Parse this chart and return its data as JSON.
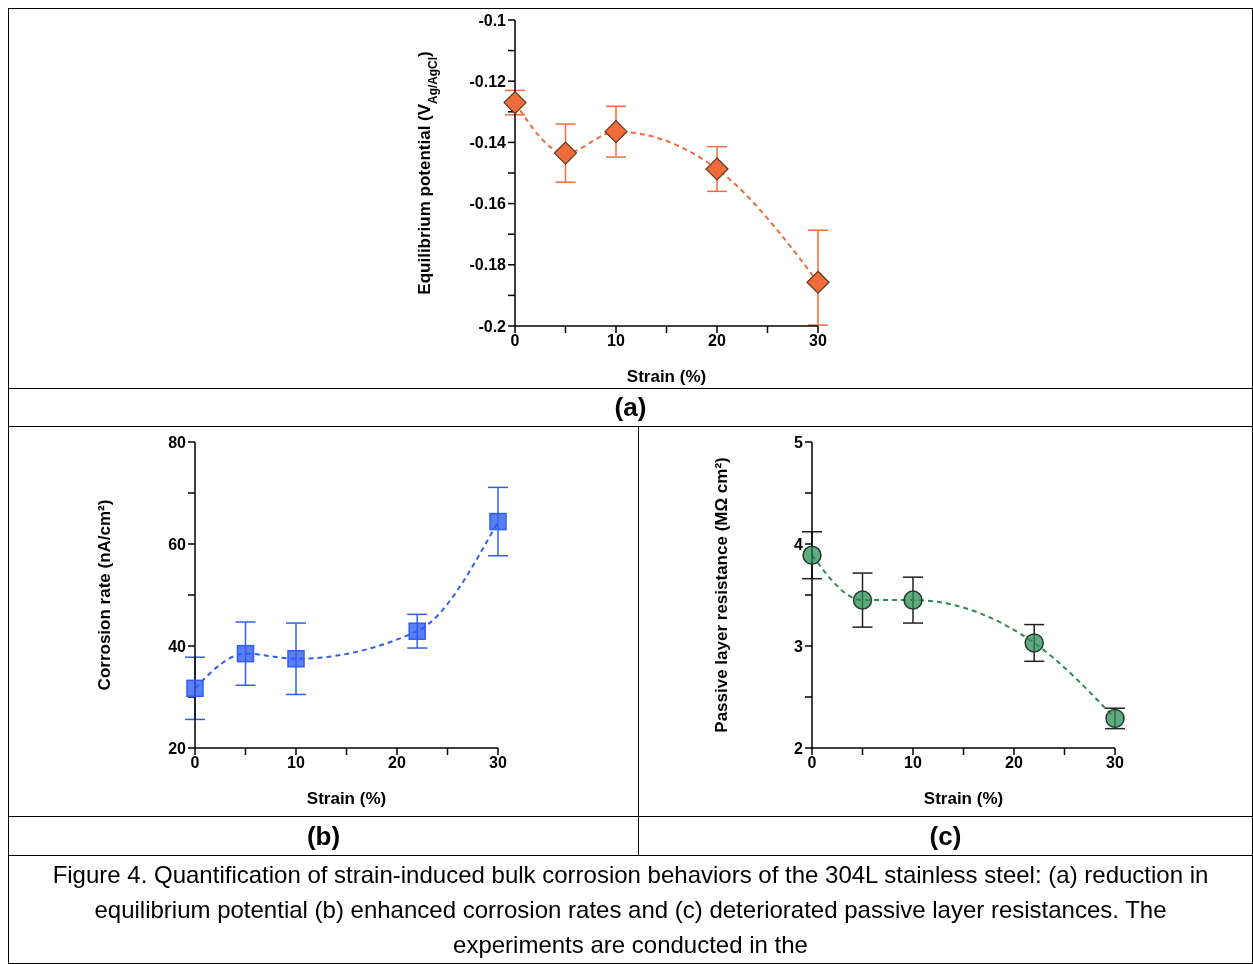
{
  "chart_data": [
    {
      "type": "line",
      "xlabel": "Strain (%)",
      "ylabel": "Equilibrium potential (V$_{Ag/AgCl}$)",
      "xlim": [
        0,
        30
      ],
      "ylim": [
        -0.2,
        -0.1
      ],
      "xticks": [
        0,
        {
          "value": 5,
          "label": null
        },
        10,
        {
          "value": 15,
          "label": null
        },
        20,
        {
          "value": 25,
          "label": null
        },
        30
      ],
      "yticks": [
        -0.2,
        {
          "value": -0.19,
          "label": null
        },
        -0.18,
        {
          "value": -0.17,
          "label": null
        },
        -0.16,
        {
          "value": -0.15,
          "label": null
        },
        -0.14,
        {
          "value": -0.13,
          "label": null
        },
        -0.12,
        {
          "value": -0.11,
          "label": null
        },
        -0.1
      ],
      "grid": false,
      "legend": false,
      "marker": "diamond",
      "line_style": "dashed",
      "series": [
        {
          "color": "#f26b3a",
          "x": [
            0,
            5,
            10,
            20,
            30
          ],
          "values": [
            -0.127,
            -0.1435,
            -0.1365,
            -0.1487,
            -0.1857
          ],
          "errors": [
            0.004,
            0.0095,
            0.0083,
            0.0073,
            [
              -0.1997,
              -0.1687
            ]
          ]
        }
      ],
      "annotations": [
        "(a)",
        "Figure 4. Quantification of strain-induced bulk corrosion behaviors of the 304L stainless steel: (a) reduction in equilibrium potential (b) enhanced corrosion rates and (c) deteriorated passive layer resistances.  The experiments are conducted in the"
      ]
    },
    {
      "type": "line",
      "xlabel": "Strain (%)",
      "ylabel": "Corrosion rate (nA/cm²)",
      "xlim": [
        0,
        30
      ],
      "ylim": [
        20,
        80
      ],
      "xticks": [
        0,
        {
          "value": 5,
          "label": null
        },
        10,
        {
          "value": 15,
          "label": null
        },
        20,
        {
          "value": 25,
          "label": null
        },
        30
      ],
      "yticks": [
        20,
        {
          "value": 30,
          "label": null
        },
        40,
        {
          "value": 50,
          "label": null
        },
        60,
        {
          "value": 70,
          "label": null
        },
        80
      ],
      "grid": false,
      "legend": false,
      "marker": "square",
      "line_style": "dashed",
      "series": [
        {
          "color": "#2f5ff0",
          "x": [
            0,
            5,
            10,
            22,
            30
          ],
          "values": [
            31.7,
            38.5,
            37.5,
            42.9,
            64.4
          ],
          "errors": [
            6.1,
            6.2,
            7,
            3.3,
            6.7
          ]
        }
      ],
      "annotations": [
        "(b)"
      ]
    },
    {
      "type": "line",
      "xlabel": "Strain (%)",
      "ylabel": "Passive layer resistance (MΩ cm²)",
      "xlim": [
        0,
        30
      ],
      "ylim": [
        2,
        5
      ],
      "xticks": [
        0,
        {
          "value": 5,
          "label": null
        },
        10,
        {
          "value": 15,
          "label": null
        },
        20,
        {
          "value": 25,
          "label": null
        },
        30
      ],
      "yticks": [
        2,
        {
          "value": 2.5,
          "label": null
        },
        3,
        {
          "value": 3.5,
          "label": null
        },
        4,
        {
          "value": 4.5,
          "label": null
        },
        5
      ],
      "grid": false,
      "legend": false,
      "marker": "circle",
      "line_style": "dashed",
      "series": [
        {
          "color": "#2e8b57",
          "x": [
            0,
            5,
            10,
            22,
            30
          ],
          "values": [
            3.89,
            3.45,
            3.45,
            3.03,
            2.29
          ],
          "errors": [
            0.23,
            0.265,
            0.225,
            0.18,
            0.1
          ]
        }
      ],
      "annotations": [
        "(c)"
      ]
    }
  ]
}
